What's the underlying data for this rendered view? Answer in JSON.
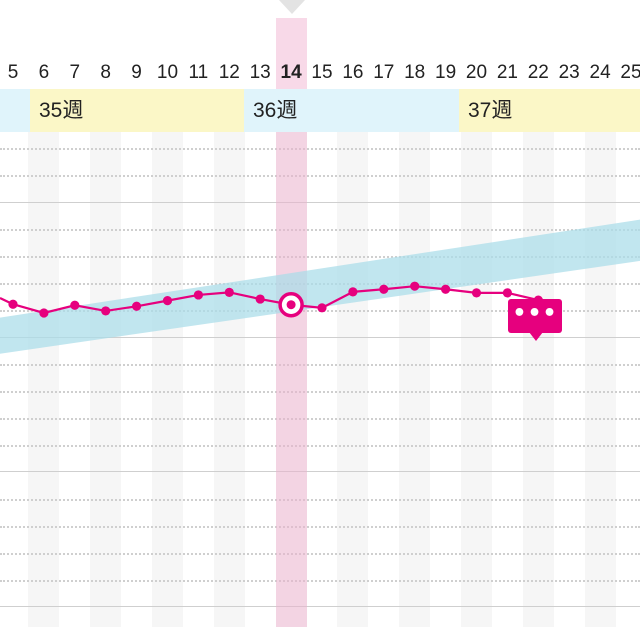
{
  "timeline": {
    "days": [
      {
        "label": "5"
      },
      {
        "label": "6"
      },
      {
        "label": "7"
      },
      {
        "label": "8"
      },
      {
        "label": "9"
      },
      {
        "label": "10"
      },
      {
        "label": "11"
      },
      {
        "label": "12"
      },
      {
        "label": "13"
      },
      {
        "label": "14",
        "selected": true
      },
      {
        "label": "15"
      },
      {
        "label": "16"
      },
      {
        "label": "17"
      },
      {
        "label": "18"
      },
      {
        "label": "19"
      },
      {
        "label": "20"
      },
      {
        "label": "21"
      },
      {
        "label": "22"
      },
      {
        "label": "23"
      },
      {
        "label": "24"
      },
      {
        "label": "25"
      }
    ],
    "weeks": [
      {
        "label": "",
        "color": "#e0f4fb"
      },
      {
        "label": "35週",
        "color": "#fbf7c7"
      },
      {
        "label": "36週",
        "color": "#e0f4fb"
      },
      {
        "label": "37週",
        "color": "#fbf7c7"
      }
    ],
    "selected_day": "14"
  },
  "colors": {
    "series": "#e6007e",
    "range_band": "#a9dce9",
    "selected_band": "#f3c3dc",
    "week_a": "#e0f4fb",
    "week_b": "#fbf7c7"
  },
  "chart_data": {
    "type": "line",
    "x": [
      "5",
      "6",
      "7",
      "8",
      "9",
      "10",
      "11",
      "12",
      "13",
      "14",
      "15",
      "16",
      "17",
      "18",
      "19",
      "20",
      "21",
      "22"
    ],
    "series": [
      {
        "values": [
          9.6,
          7.9,
          9.4,
          8.3,
          9.2,
          10.3,
          11.4,
          11.9,
          10.6,
          9.5,
          8.9,
          12.0,
          12.5,
          13.1,
          12.5,
          11.8,
          11.8,
          10.4
        ]
      }
    ],
    "reference_band": {
      "lower_start": 0.0,
      "lower_end": 18.0,
      "upper_start": 7.0,
      "upper_end": 26.0
    },
    "selected_index": 9,
    "ylim": [
      -53,
      43
    ],
    "grid": true
  },
  "note_badge": {
    "icon": "more-dots-icon",
    "text": "•••"
  }
}
